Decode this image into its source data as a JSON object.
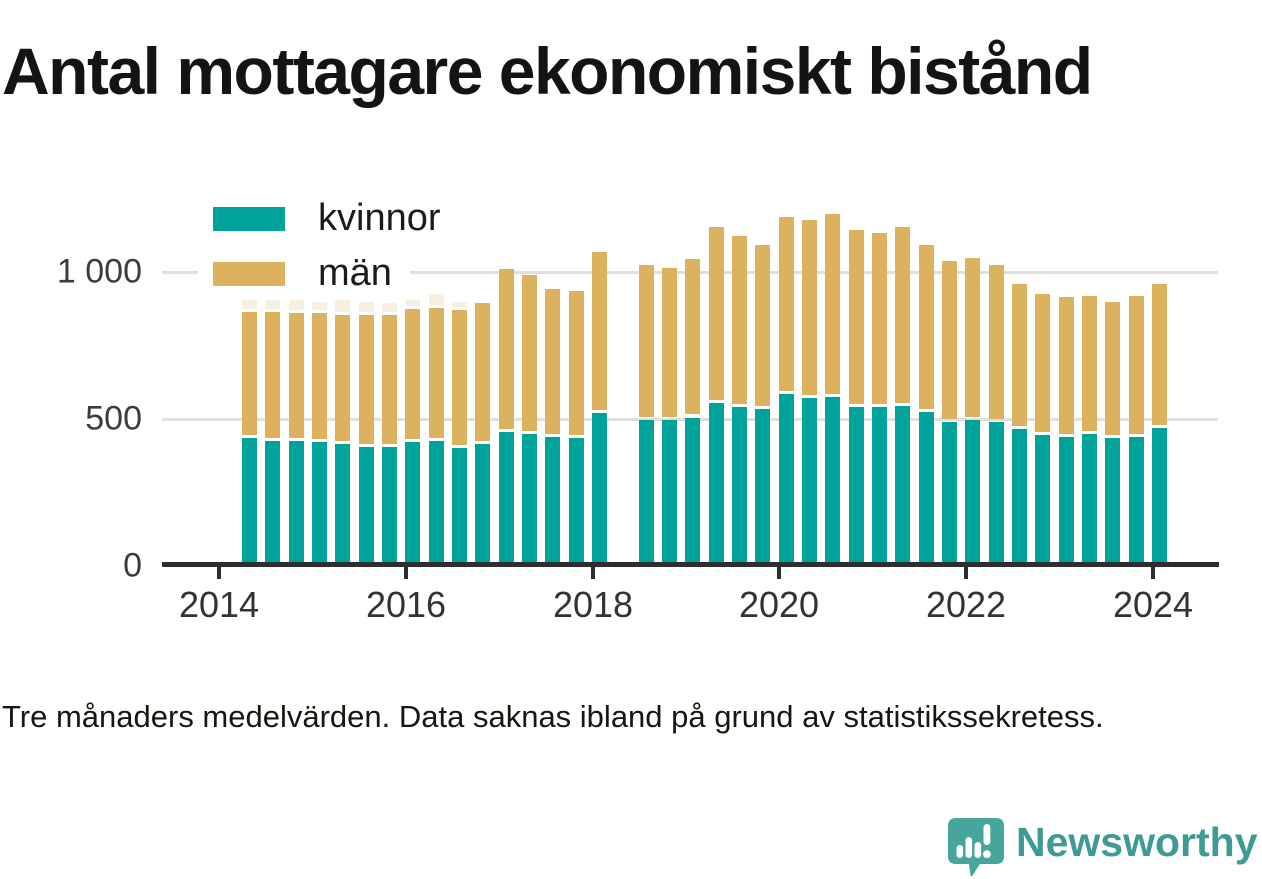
{
  "title": "Antal mottagare ekonomiskt bistånd",
  "legend": [
    {
      "label": "kvinnor",
      "color": "#00a39a"
    },
    {
      "label": "män",
      "color": "#ddb25f"
    }
  ],
  "footer": {
    "note": "Tre månaders medelvärden. Data saknas ibland på grund av statistikssekretess."
  },
  "branding": {
    "name": "Newsworthy",
    "text_color": "#3e9a94",
    "bubble_color": "#46a69b",
    "icon": "newsworthy-chart-speech-bubble-icon"
  },
  "chart_data": {
    "type": "bar",
    "stacked": true,
    "title": "Antal mottagare ekonomiskt bistånd",
    "xlabel": "",
    "ylabel": "",
    "ylim": [
      0,
      1250
    ],
    "grid": "horizontal",
    "y_gridlines": [
      500,
      1000
    ],
    "y_ticks": [
      0,
      500,
      1000
    ],
    "y_tick_labels": [
      "0",
      "500",
      "1 000"
    ],
    "x_tick_labels": [
      "2014",
      "2016",
      "2018",
      "2020",
      "2022",
      "2024"
    ],
    "legend_position": "inside-top-left",
    "missing_categories": [
      "2018 kv2"
    ],
    "categories": [
      "2014 kv2",
      "2014 kv3",
      "2014 kv4",
      "2015 kv1",
      "2015 kv2",
      "2015 kv3",
      "2015 kv4",
      "2016 kv1",
      "2016 kv2",
      "2016 kv3",
      "2016 kv4",
      "2017 kv1",
      "2017 kv2",
      "2017 kv3",
      "2017 kv4",
      "2018 kv1",
      "2018 kv2",
      "2018 kv3",
      "2018 kv4",
      "2019 kv1",
      "2019 kv2",
      "2019 kv3",
      "2019 kv4",
      "2020 kv1",
      "2020 kv2",
      "2020 kv3",
      "2020 kv4",
      "2021 kv1",
      "2021 kv2",
      "2021 kv3",
      "2021 kv4",
      "2022 kv1",
      "2022 kv2",
      "2022 kv3",
      "2022 kv4",
      "2023 kv1",
      "2023 kv2",
      "2023 kv3",
      "2023 kv4",
      "2024 kv1"
    ],
    "series": [
      {
        "name": "kvinnor",
        "color": "#00a39a",
        "in_legend": true,
        "values": [
          430,
          420,
          420,
          415,
          410,
          400,
          400,
          415,
          420,
          395,
          410,
          450,
          445,
          435,
          430,
          515,
          null,
          490,
          490,
          500,
          550,
          535,
          530,
          580,
          565,
          570,
          535,
          535,
          540,
          520,
          485,
          490,
          485,
          460,
          440,
          435,
          445,
          430,
          435,
          465
        ]
      },
      {
        "name": "män",
        "color": "#ddb25f",
        "in_legend": true,
        "values": [
          420,
          430,
          425,
          430,
          430,
          440,
          440,
          445,
          445,
          460,
          470,
          545,
          530,
          495,
          490,
          540,
          null,
          520,
          510,
          530,
          590,
          575,
          550,
          595,
          600,
          615,
          595,
          585,
          600,
          560,
          540,
          545,
          525,
          485,
          470,
          465,
          460,
          455,
          470,
          480
        ]
      },
      {
        "name": "osäker del (statistikssekretess, ljus topp)",
        "color": "#f7efdf",
        "in_legend": false,
        "values": [
          85,
          50,
          40,
          30,
          40,
          35,
          30,
          20,
          35,
          20,
          0,
          0,
          0,
          0,
          0,
          0,
          null,
          0,
          0,
          0,
          0,
          0,
          0,
          0,
          0,
          0,
          0,
          0,
          0,
          0,
          0,
          0,
          0,
          0,
          0,
          0,
          0,
          0,
          0,
          0
        ]
      }
    ]
  }
}
